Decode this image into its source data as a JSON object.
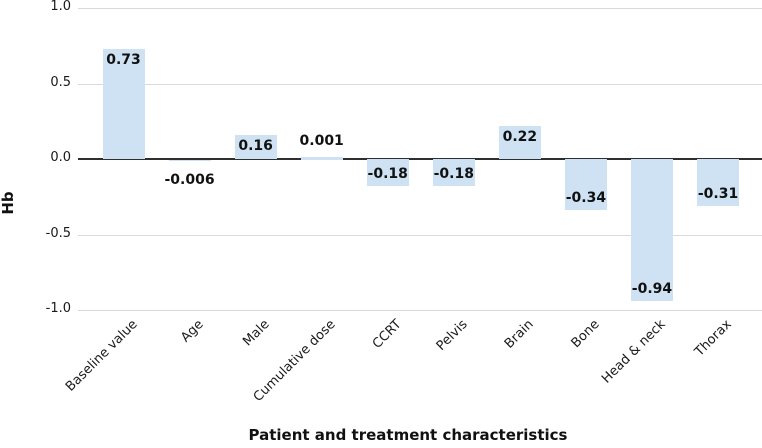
{
  "chart_data": {
    "type": "bar",
    "title": "",
    "xlabel": "Patient and treatment characteristics",
    "ylabel": "Hb",
    "categories": [
      "Baseline value",
      "Age",
      "Male",
      "Cumulative dose",
      "CCRT",
      "Pelvis",
      "Brain",
      "Bone",
      "Head & neck",
      "Thorax"
    ],
    "values": [
      0.73,
      -0.006,
      0.16,
      0.001,
      -0.18,
      -0.18,
      0.22,
      -0.34,
      -0.94,
      -0.31
    ],
    "value_labels": [
      "0.73",
      "-0.006",
      "0.16",
      "0.001",
      "-0.18",
      "-0.18",
      "0.22",
      "-0.34",
      "-0.94",
      "-0.31"
    ],
    "ylim": [
      -1.0,
      1.0
    ],
    "yticks": [
      1.0,
      0.5,
      0.0,
      -0.5,
      -1.0
    ],
    "ytick_labels": [
      "1.0",
      "0.5",
      "0.0",
      "-0.5",
      "-1.0"
    ],
    "grid": true,
    "legend": false,
    "colors": {
      "bar_fill": "#cfe2f3",
      "gridline": "#d9d9d9",
      "zero_line": "#2f2f2f",
      "text": "#111111"
    }
  }
}
